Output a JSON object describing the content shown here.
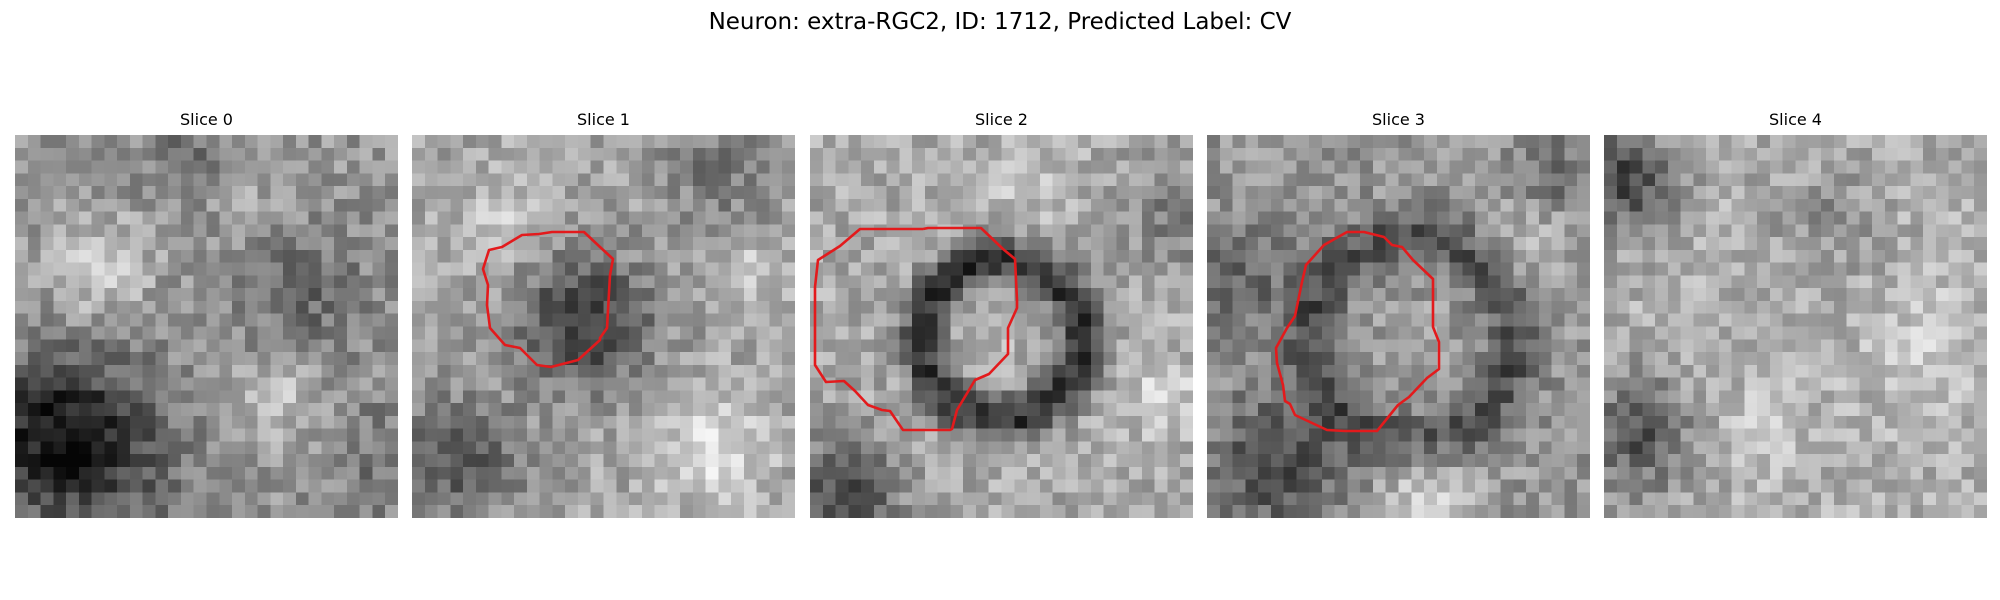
{
  "figure": {
    "title": "Neuron: extra-RGC2, ID: 1712, Predicted Label: CV",
    "contour_color": "#e31a1c"
  },
  "panels": [
    {
      "title": "Slice 0",
      "has_contour": false
    },
    {
      "title": "Slice 1",
      "has_contour": true
    },
    {
      "title": "Slice 2",
      "has_contour": true
    },
    {
      "title": "Slice 3",
      "has_contour": true
    },
    {
      "title": "Slice 4",
      "has_contour": false
    }
  ]
}
